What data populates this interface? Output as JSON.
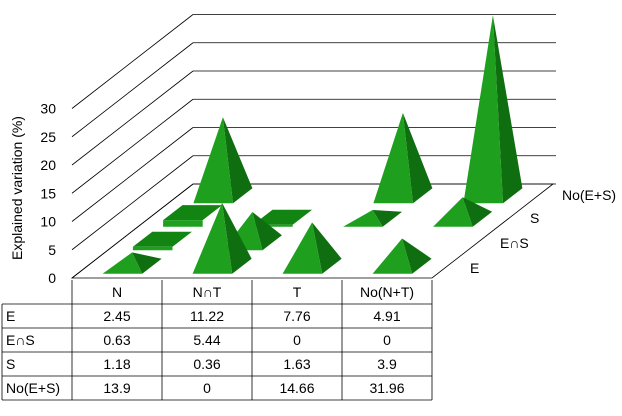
{
  "chart_data": {
    "type": "bar",
    "style": "3d-pyramid",
    "xlabel": "",
    "ylabel": "Explained variation (%)",
    "ylim": [
      0,
      30
    ],
    "y_ticks": [
      "0",
      "5",
      "10",
      "15",
      "20",
      "25",
      "30"
    ],
    "categories": [
      "N",
      "N∩T",
      "T",
      "No(N+T)"
    ],
    "series": [
      {
        "name": "E",
        "values": [
          2.45,
          11.22,
          7.76,
          4.91
        ]
      },
      {
        "name": "E∩S",
        "values": [
          0.63,
          5.44,
          0,
          0
        ]
      },
      {
        "name": "S",
        "values": [
          1.18,
          0.36,
          1.63,
          3.9
        ]
      },
      {
        "name": "No(E+S)",
        "values": [
          13.9,
          0,
          14.66,
          31.96
        ]
      }
    ],
    "table": {
      "rows": [
        [
          "2.45",
          "11.22",
          "7.76",
          "4.91"
        ],
        [
          "0.63",
          "5.44",
          "0",
          "0"
        ],
        [
          "1.18",
          "0.36",
          "1.63",
          "3.9"
        ],
        [
          "13.9",
          "0",
          "14.66",
          "31.96"
        ]
      ]
    },
    "grid": true,
    "colors": {
      "bar_front": "#1ea01e",
      "bar_right": "#0f6e0f",
      "bar_top": "#128412",
      "grid": "#000000"
    }
  }
}
